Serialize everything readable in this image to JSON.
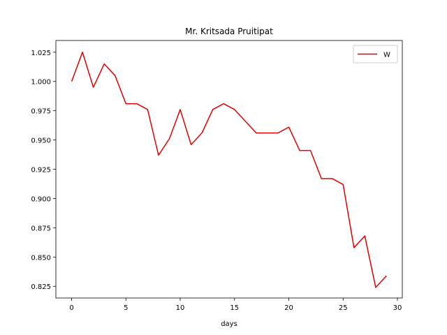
{
  "chart_data": {
    "type": "line",
    "title": "Mr. Kritsada Pruitipat",
    "xlabel": "days",
    "ylabel": "",
    "xlim": [
      -1.45,
      30.45
    ],
    "ylim": [
      0.815,
      1.035
    ],
    "xticks": [
      0,
      5,
      10,
      15,
      20,
      25,
      30
    ],
    "yticks": [
      0.825,
      0.85,
      0.875,
      0.9,
      0.925,
      0.95,
      0.975,
      1.0,
      1.025
    ],
    "ytick_labels": [
      "0.825",
      "0.850",
      "0.875",
      "0.900",
      "0.925",
      "0.950",
      "0.975",
      "1.000",
      "1.025"
    ],
    "grid": false,
    "legend_position": "top-right",
    "series": [
      {
        "name": "W",
        "color": "#e00000",
        "x": [
          0,
          1,
          2,
          3,
          4,
          5,
          6,
          7,
          8,
          9,
          10,
          11,
          12,
          13,
          14,
          15,
          16,
          17,
          18,
          19,
          20,
          21,
          22,
          23,
          24,
          25,
          26,
          27,
          28,
          29
        ],
        "y": [
          1.0,
          1.025,
          0.995,
          1.015,
          1.005,
          0.981,
          0.981,
          0.976,
          0.937,
          0.951,
          0.976,
          0.946,
          0.956,
          0.976,
          0.981,
          0.976,
          0.966,
          0.956,
          0.956,
          0.956,
          0.961,
          0.941,
          0.941,
          0.917,
          0.917,
          0.912,
          0.858,
          0.868,
          0.824,
          0.834
        ]
      }
    ]
  }
}
